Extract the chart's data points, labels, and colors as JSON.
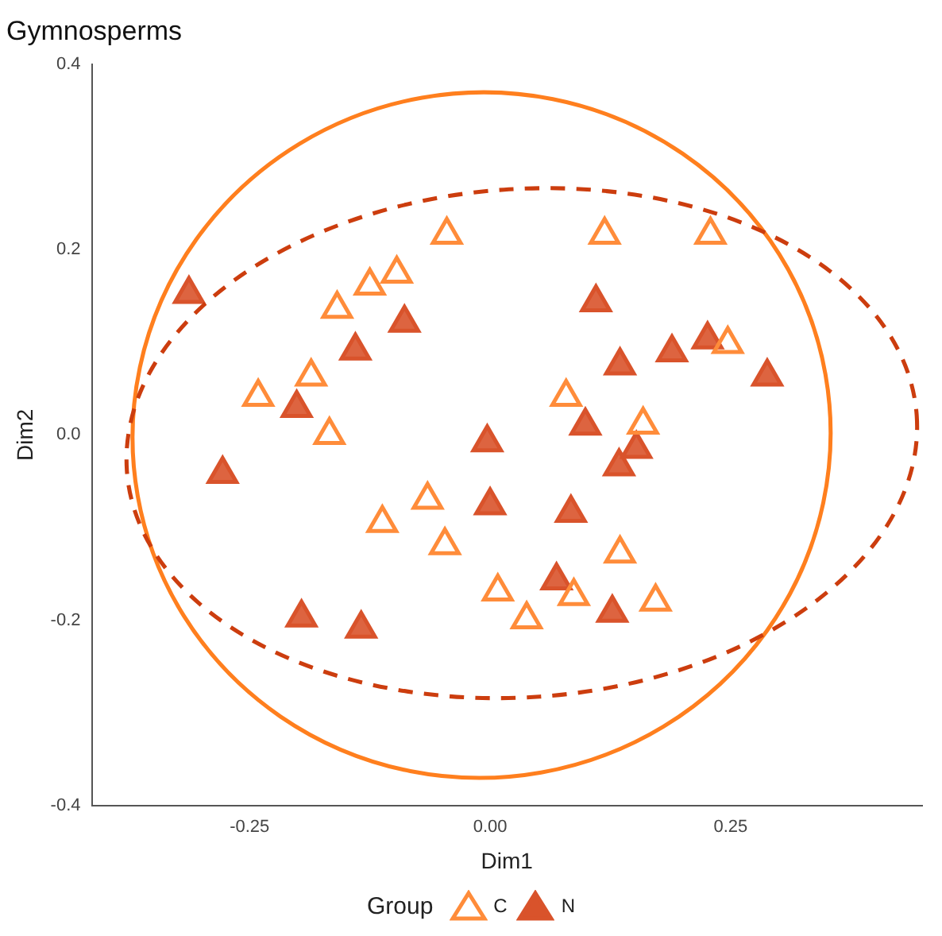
{
  "chart_data": {
    "type": "scatter",
    "title": "Gymnosperms",
    "xlabel": "Dim1",
    "ylabel": "Dim2",
    "legend_title": "Group",
    "legend": "bottom",
    "grid": false,
    "xlim": [
      -0.414,
      0.449
    ],
    "xticks": [
      -0.25,
      {
        "value": 0,
        "label": "0.00"
      },
      0.25
    ],
    "ylim": [
      -0.4,
      0.4
    ],
    "yticks": [
      -0.4,
      -0.2,
      {
        "value": 0,
        "label": "0.0"
      },
      0.2,
      0.4
    ],
    "series": [
      {
        "name": "C",
        "color": "#ff8c3a",
        "marker": "triangle",
        "x": [
          -0.045,
          0.119,
          0.229,
          -0.097,
          -0.125,
          -0.159,
          -0.186,
          -0.241,
          -0.167,
          0.079,
          0.159,
          0.247,
          -0.065,
          -0.112,
          -0.047,
          0.135,
          0.008,
          0.087,
          0.038,
          0.172
        ],
        "values": [
          0.216,
          0.216,
          0.216,
          0.174,
          0.161,
          0.136,
          0.063,
          0.041,
          0.0,
          0.041,
          0.011,
          0.098,
          -0.07,
          -0.095,
          -0.119,
          -0.128,
          -0.169,
          -0.174,
          -0.199,
          -0.18
        ]
      },
      {
        "name": "N",
        "color": "#d9532b",
        "marker": "triangle",
        "x": [
          -0.313,
          -0.278,
          -0.201,
          -0.14,
          -0.089,
          -0.196,
          -0.134,
          -0.003,
          0.0,
          0.084,
          0.11,
          0.135,
          0.189,
          0.226,
          0.288,
          0.099,
          0.134,
          0.152,
          0.069,
          0.127
        ],
        "values": [
          0.152,
          -0.042,
          0.029,
          0.091,
          0.121,
          -0.197,
          -0.209,
          -0.008,
          -0.076,
          -0.084,
          0.143,
          0.075,
          0.089,
          0.103,
          0.063,
          0.01,
          -0.034,
          -0.015,
          -0.157,
          -0.192
        ]
      }
    ]
  }
}
